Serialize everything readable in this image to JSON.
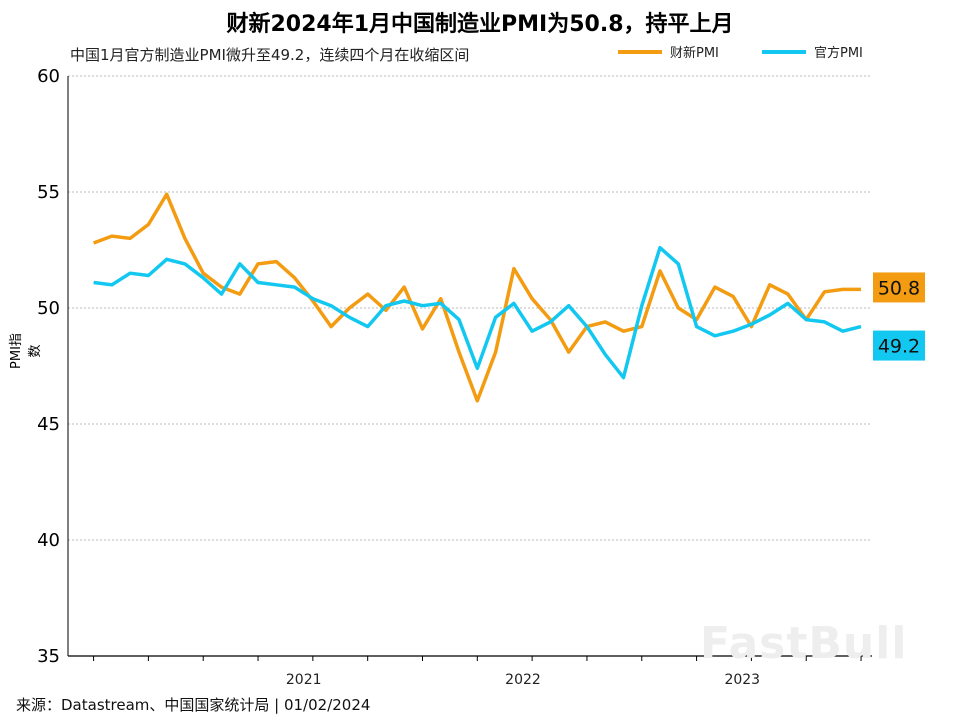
{
  "chart_data": {
    "type": "line",
    "title": "财新2024年1月中国制造业PMI为50.8，持平上月",
    "subtitle": "中国1月官方制造业PMI微升至49.2，连续四个月在收缩区间",
    "ylabel": "PMI指数",
    "ylim": [
      35,
      60
    ],
    "yticks": [
      35,
      40,
      45,
      50,
      55,
      60
    ],
    "x_ticklabels": [
      {
        "label": "2021",
        "year": 2021
      },
      {
        "label": "2022",
        "year": 2022
      },
      {
        "label": "2023",
        "year": 2023
      }
    ],
    "x_start": "2020-07",
    "x_end": "2024-01",
    "x": [
      "2020-07",
      "2020-08",
      "2020-09",
      "2020-10",
      "2020-11",
      "2020-12",
      "2021-01",
      "2021-02",
      "2021-03",
      "2021-04",
      "2021-05",
      "2021-06",
      "2021-07",
      "2021-08",
      "2021-09",
      "2021-10",
      "2021-11",
      "2021-12",
      "2022-01",
      "2022-02",
      "2022-03",
      "2022-04",
      "2022-05",
      "2022-06",
      "2022-07",
      "2022-08",
      "2022-09",
      "2022-10",
      "2022-11",
      "2022-12",
      "2023-01",
      "2023-02",
      "2023-03",
      "2023-04",
      "2023-05",
      "2023-06",
      "2023-07",
      "2023-08",
      "2023-09",
      "2023-10",
      "2023-11",
      "2023-12",
      "2024-01"
    ],
    "series": [
      {
        "name": "财新PMI",
        "color": "#F39C12",
        "last_label": "50.8",
        "values": [
          52.8,
          53.1,
          53.0,
          53.6,
          54.9,
          53.0,
          51.5,
          50.9,
          50.6,
          51.9,
          52.0,
          51.3,
          50.3,
          49.2,
          50.0,
          50.6,
          49.9,
          50.9,
          49.1,
          50.4,
          48.1,
          46.0,
          48.1,
          51.7,
          50.4,
          49.5,
          48.1,
          49.2,
          49.4,
          49.0,
          49.2,
          51.6,
          50.0,
          49.5,
          50.9,
          50.5,
          49.2,
          51.0,
          50.6,
          49.5,
          50.7,
          50.8,
          50.8
        ]
      },
      {
        "name": "官方PMI",
        "color": "#13C8F0",
        "last_label": "49.2",
        "values": [
          51.1,
          51.0,
          51.5,
          51.4,
          52.1,
          51.9,
          51.3,
          50.6,
          51.9,
          51.1,
          51.0,
          50.9,
          50.4,
          50.1,
          49.6,
          49.2,
          50.1,
          50.3,
          50.1,
          50.2,
          49.5,
          47.4,
          49.6,
          50.2,
          49.0,
          49.4,
          50.1,
          49.2,
          48.0,
          47.0,
          50.1,
          52.6,
          51.9,
          49.2,
          48.8,
          49.0,
          49.3,
          49.7,
          50.2,
          49.5,
          49.4,
          49.0,
          49.2
        ]
      }
    ]
  },
  "source": "来源：Datastream、中国国家统计局 | 01/02/2024",
  "watermark": "FastBull"
}
